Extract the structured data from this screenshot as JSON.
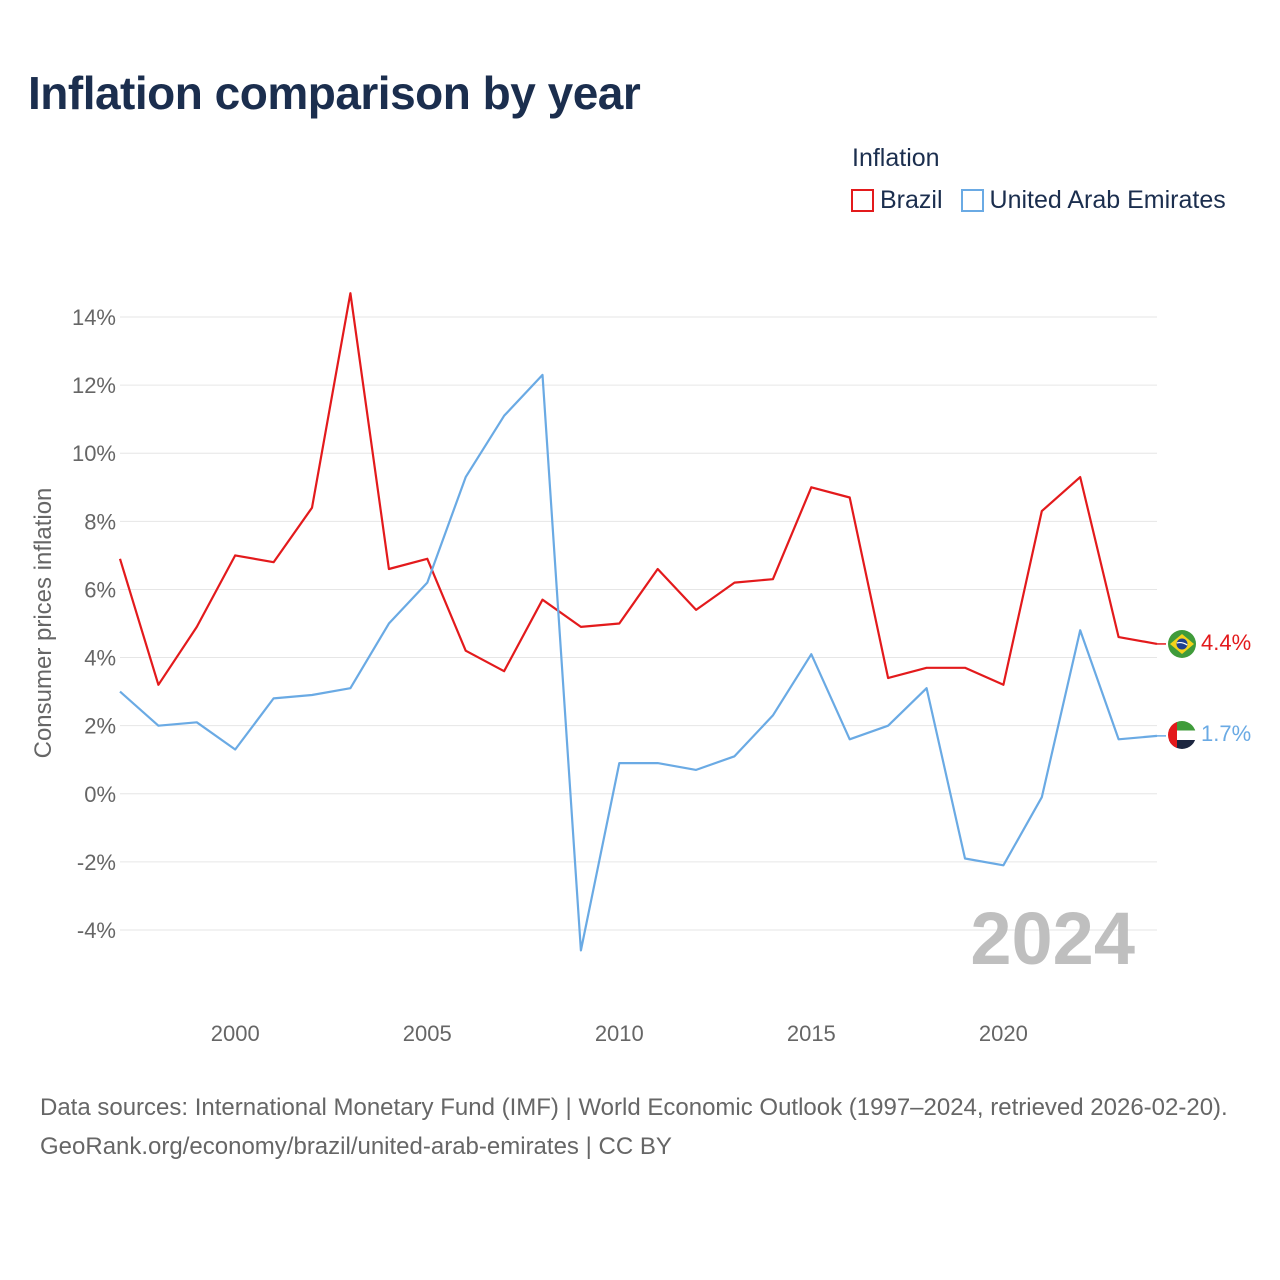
{
  "title": "Inflation comparison by year",
  "legend": {
    "title": "Inflation",
    "items": [
      {
        "label": "Brazil",
        "color": "#e31a1c"
      },
      {
        "label": "United Arab Emirates",
        "color": "#6aaae4"
      }
    ]
  },
  "year_watermark": "2024",
  "source": {
    "line1": "Data sources: International Monetary Fund (IMF) | World Economic Outlook (1997–2024, retrieved 2026-02-20).",
    "line2": "GeoRank.org/economy/brazil/united-arab-emirates | CC BY"
  },
  "chart_data": {
    "type": "line",
    "title": "Inflation comparison by year",
    "xlabel": "",
    "ylabel": "Consumer prices inflation",
    "xlim": [
      1997,
      2024
    ],
    "ylim": [
      -6,
      14.8
    ],
    "x_ticks": [
      2000,
      2005,
      2010,
      2015,
      2020
    ],
    "y_ticks": [
      -4,
      -2,
      0,
      2,
      4,
      6,
      8,
      10,
      12,
      14
    ],
    "y_tick_labels": [
      "-4%",
      "-2%",
      "0%",
      "2%",
      "4%",
      "6%",
      "8%",
      "10%",
      "12%",
      "14%"
    ],
    "grid": true,
    "legend_position": "top-right",
    "x": [
      1997,
      1998,
      1999,
      2000,
      2001,
      2002,
      2003,
      2004,
      2005,
      2006,
      2007,
      2008,
      2009,
      2010,
      2011,
      2012,
      2013,
      2014,
      2015,
      2016,
      2017,
      2018,
      2019,
      2020,
      2021,
      2022,
      2023,
      2024
    ],
    "series": [
      {
        "name": "Brazil",
        "color": "#e31a1c",
        "end_label": "4.4%",
        "values": [
          6.9,
          3.2,
          4.9,
          7.0,
          6.8,
          8.4,
          14.7,
          6.6,
          6.9,
          4.2,
          3.6,
          5.7,
          4.9,
          5.0,
          6.6,
          5.4,
          6.2,
          6.3,
          9.0,
          8.7,
          3.4,
          3.7,
          3.7,
          3.2,
          8.3,
          9.3,
          4.6,
          4.4
        ]
      },
      {
        "name": "United Arab Emirates",
        "color": "#6aaae4",
        "end_label": "1.7%",
        "values": [
          3.0,
          2.0,
          2.1,
          1.3,
          2.8,
          2.9,
          3.1,
          5.0,
          6.2,
          9.3,
          11.1,
          12.3,
          -4.6,
          0.9,
          0.9,
          0.7,
          1.1,
          2.3,
          4.1,
          1.6,
          2.0,
          3.1,
          -1.9,
          -2.1,
          -0.1,
          4.8,
          1.6,
          1.7
        ]
      }
    ]
  }
}
